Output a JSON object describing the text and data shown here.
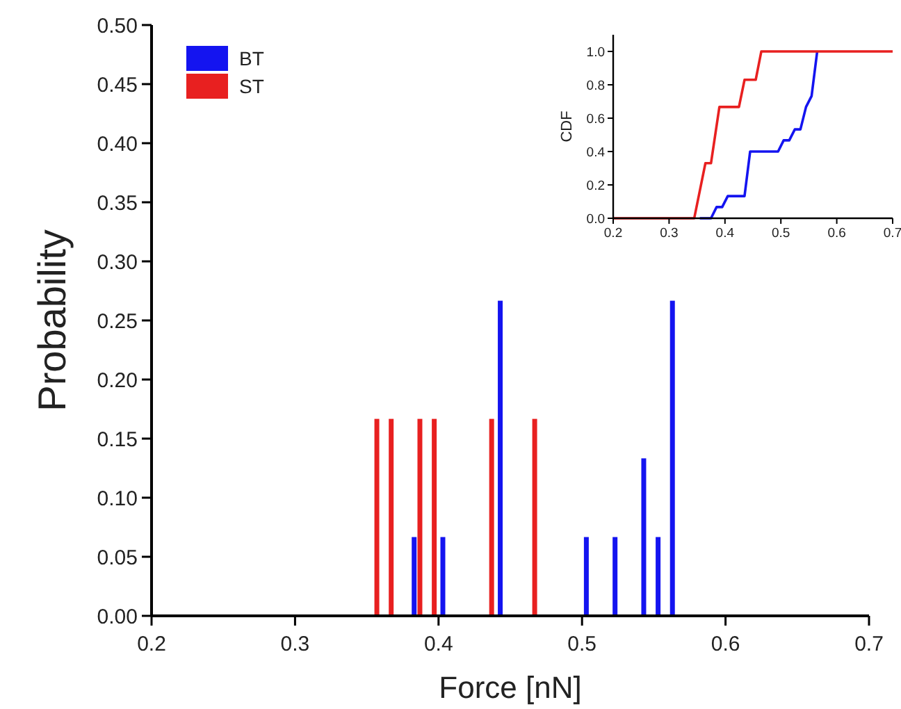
{
  "chart_data": [
    {
      "type": "bar",
      "xlabel": "Force [nN]",
      "ylabel": "Probability",
      "xlim": [
        0.2,
        0.7
      ],
      "xticks": [
        0.2,
        0.3,
        0.4,
        0.5,
        0.6,
        0.7
      ],
      "ylim": [
        0,
        0.5
      ],
      "yticks": [
        {
          "value": 0,
          "label": "0.00"
        },
        {
          "value": 0.05,
          "label": "0.05"
        },
        {
          "value": 0.1,
          "label": "0.10"
        },
        {
          "value": 0.15,
          "label": "0.15"
        },
        {
          "value": 0.2,
          "label": "0.20"
        },
        {
          "value": 0.25,
          "label": "0.25"
        },
        {
          "value": 0.3,
          "label": "0.30"
        },
        {
          "value": 0.35,
          "label": "0.35"
        },
        {
          "value": 0.4,
          "label": "0.40"
        },
        {
          "value": 0.45,
          "label": "0.45"
        },
        {
          "value": 0.5,
          "label": "0.50"
        }
      ],
      "legend": "top left",
      "grid": false,
      "series": [
        {
          "name": "BT",
          "color": "#1414f0",
          "x": [
            0.383,
            0.403,
            0.443,
            0.503,
            0.523,
            0.543,
            0.553,
            0.563
          ],
          "values": [
            0.0667,
            0.0667,
            0.2667,
            0.0667,
            0.0667,
            0.1333,
            0.0667,
            0.2667
          ]
        },
        {
          "name": "ST",
          "color": "#e82020",
          "x": [
            0.357,
            0.367,
            0.387,
            0.397,
            0.437,
            0.467
          ],
          "values": [
            0.1667,
            0.1667,
            0.1667,
            0.1667,
            0.1667,
            0.1667
          ]
        }
      ]
    },
    {
      "type": "line",
      "ylabel": "CDF",
      "xlim": [
        0.2,
        0.7
      ],
      "xticks": [
        0.2,
        0.3,
        0.4,
        0.5,
        0.6,
        0.7
      ],
      "ylim": [
        0,
        1.1
      ],
      "yticks": [
        {
          "value": 0,
          "label": "0.0"
        },
        {
          "value": 0.2,
          "label": "0.2"
        },
        {
          "value": 0.4,
          "label": "0.4"
        },
        {
          "value": 0.6,
          "label": "0.6"
        },
        {
          "value": 0.8,
          "label": "0.8"
        },
        {
          "value": 1,
          "label": "1.0"
        }
      ],
      "grid": false,
      "marker": "none",
      "line_style": "solid",
      "series": [
        {
          "color": "#1414f0",
          "x": [
            0.355,
            0.375,
            0.385,
            0.395,
            0.405,
            0.435,
            0.445,
            0.495,
            0.505,
            0.515,
            0.525,
            0.535,
            0.545,
            0.555,
            0.565
          ],
          "values": [
            0,
            0,
            0.067,
            0.067,
            0.133,
            0.133,
            0.4,
            0.4,
            0.467,
            0.467,
            0.533,
            0.533,
            0.667,
            0.733,
            1.0
          ]
        },
        {
          "color": "#e82020",
          "x": [
            0.2,
            0.345,
            0.365,
            0.375,
            0.39,
            0.425,
            0.435,
            0.455,
            0.465,
            0.7
          ],
          "values": [
            0,
            0,
            0.33,
            0.33,
            0.667,
            0.667,
            0.83,
            0.83,
            1.0,
            1.0
          ]
        }
      ]
    }
  ]
}
